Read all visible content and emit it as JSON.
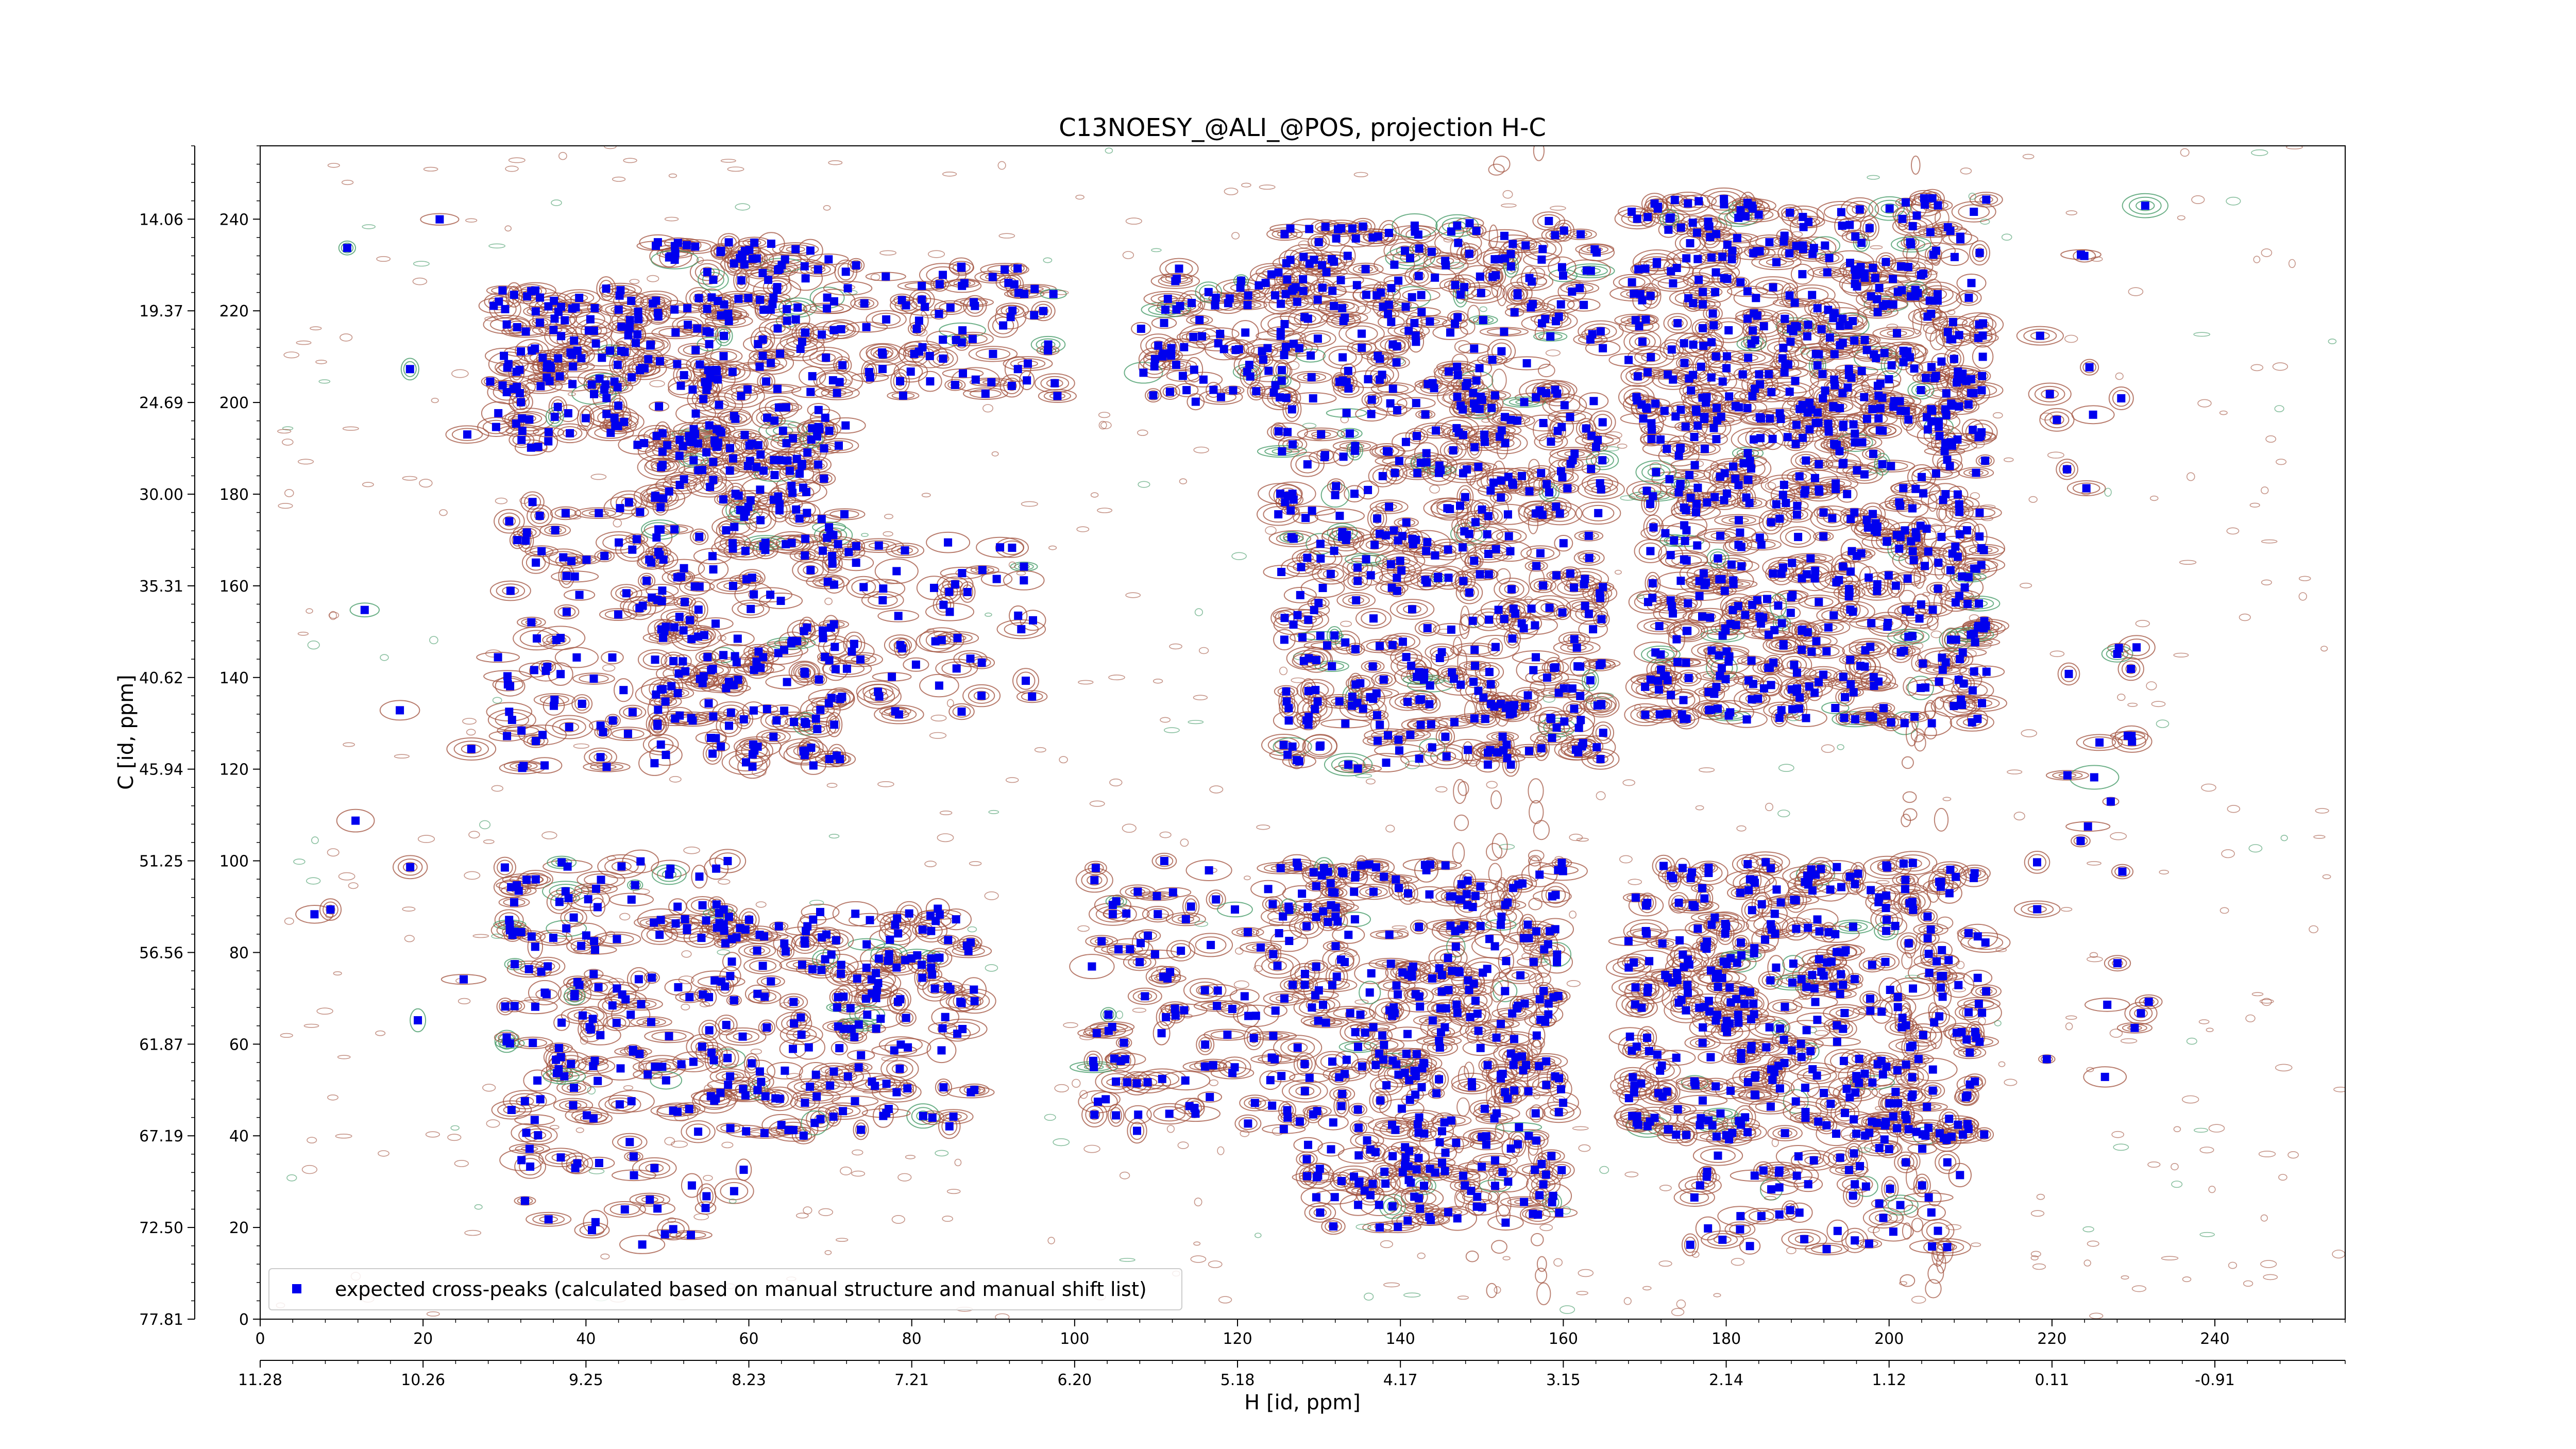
{
  "chart_data": {
    "type": "scatter",
    "title": "C13NOESY_@ALI_@POS, projection H-C",
    "xlabel": "H [id, ppm]",
    "ylabel": "C [id, ppm]",
    "x_index_range": [
      0,
      256
    ],
    "y_index_range": [
      0,
      256
    ],
    "x_index_ticks": [
      "0",
      "20",
      "40",
      "60",
      "80",
      "100",
      "120",
      "140",
      "160",
      "180",
      "200",
      "220",
      "240"
    ],
    "y_index_ticks": [
      "0",
      "20",
      "40",
      "60",
      "80",
      "100",
      "120",
      "140",
      "160",
      "180",
      "200",
      "220",
      "240"
    ],
    "x_ppm_ticks": [
      "11.28",
      "10.26",
      "9.25",
      "8.23",
      "7.21",
      "6.20",
      "5.18",
      "4.17",
      "3.15",
      "2.14",
      "1.12",
      "0.11",
      "-0.91"
    ],
    "y_ppm_ticks": [
      "77.81",
      "72.50",
      "67.19",
      "61.87",
      "56.56",
      "51.25",
      "45.94",
      "40.62",
      "35.31",
      "30.00",
      "24.69",
      "19.37",
      "14.06"
    ],
    "legend": {
      "label": "expected cross-peaks (calculated based on manual structure and manual shift list)",
      "placement": "bottom-left"
    },
    "marker_color": "#0000ee",
    "contour_colors": {
      "positive": "#a0503c",
      "negative": "#3c9660"
    },
    "peak_clusters": [
      {
        "x": [
          28,
          48
        ],
        "y": [
          190,
          225
        ],
        "n": 120
      },
      {
        "x": [
          48,
          72
        ],
        "y": [
          185,
          235
        ],
        "n": 170
      },
      {
        "x": [
          72,
          98
        ],
        "y": [
          200,
          230
        ],
        "n": 70
      },
      {
        "x": [
          30,
          50
        ],
        "y": [
          120,
          180
        ],
        "n": 80
      },
      {
        "x": [
          48,
          72
        ],
        "y": [
          120,
          195
        ],
        "n": 210
      },
      {
        "x": [
          72,
          95
        ],
        "y": [
          130,
          170
        ],
        "n": 50
      },
      {
        "x": [
          30,
          58
        ],
        "y": [
          45,
          100
        ],
        "n": 140
      },
      {
        "x": [
          55,
          88
        ],
        "y": [
          40,
          90
        ],
        "n": 170
      },
      {
        "x": [
          32,
          60
        ],
        "y": [
          15,
          45
        ],
        "n": 35
      },
      {
        "x": [
          108,
          128
        ],
        "y": [
          200,
          230
        ],
        "n": 70
      },
      {
        "x": [
          125,
          165
        ],
        "y": [
          190,
          240
        ],
        "n": 230
      },
      {
        "x": [
          125,
          165
        ],
        "y": [
          120,
          190
        ],
        "n": 320
      },
      {
        "x": [
          102,
          130
        ],
        "y": [
          40,
          100
        ],
        "n": 110
      },
      {
        "x": [
          128,
          160
        ],
        "y": [
          20,
          100
        ],
        "n": 330
      },
      {
        "x": [
          168,
          212
        ],
        "y": [
          195,
          245
        ],
        "n": 330
      },
      {
        "x": [
          170,
          212
        ],
        "y": [
          130,
          200
        ],
        "n": 430
      },
      {
        "x": [
          168,
          212
        ],
        "y": [
          40,
          100
        ],
        "n": 360
      },
      {
        "x": [
          175,
          210
        ],
        "y": [
          15,
          45
        ],
        "n": 70
      },
      {
        "x": [
          218,
          232
        ],
        "y": [
          50,
          245
        ],
        "n": 35
      },
      {
        "x": [
          5,
          30
        ],
        "y": [
          60,
          240
        ],
        "n": 14
      }
    ]
  }
}
